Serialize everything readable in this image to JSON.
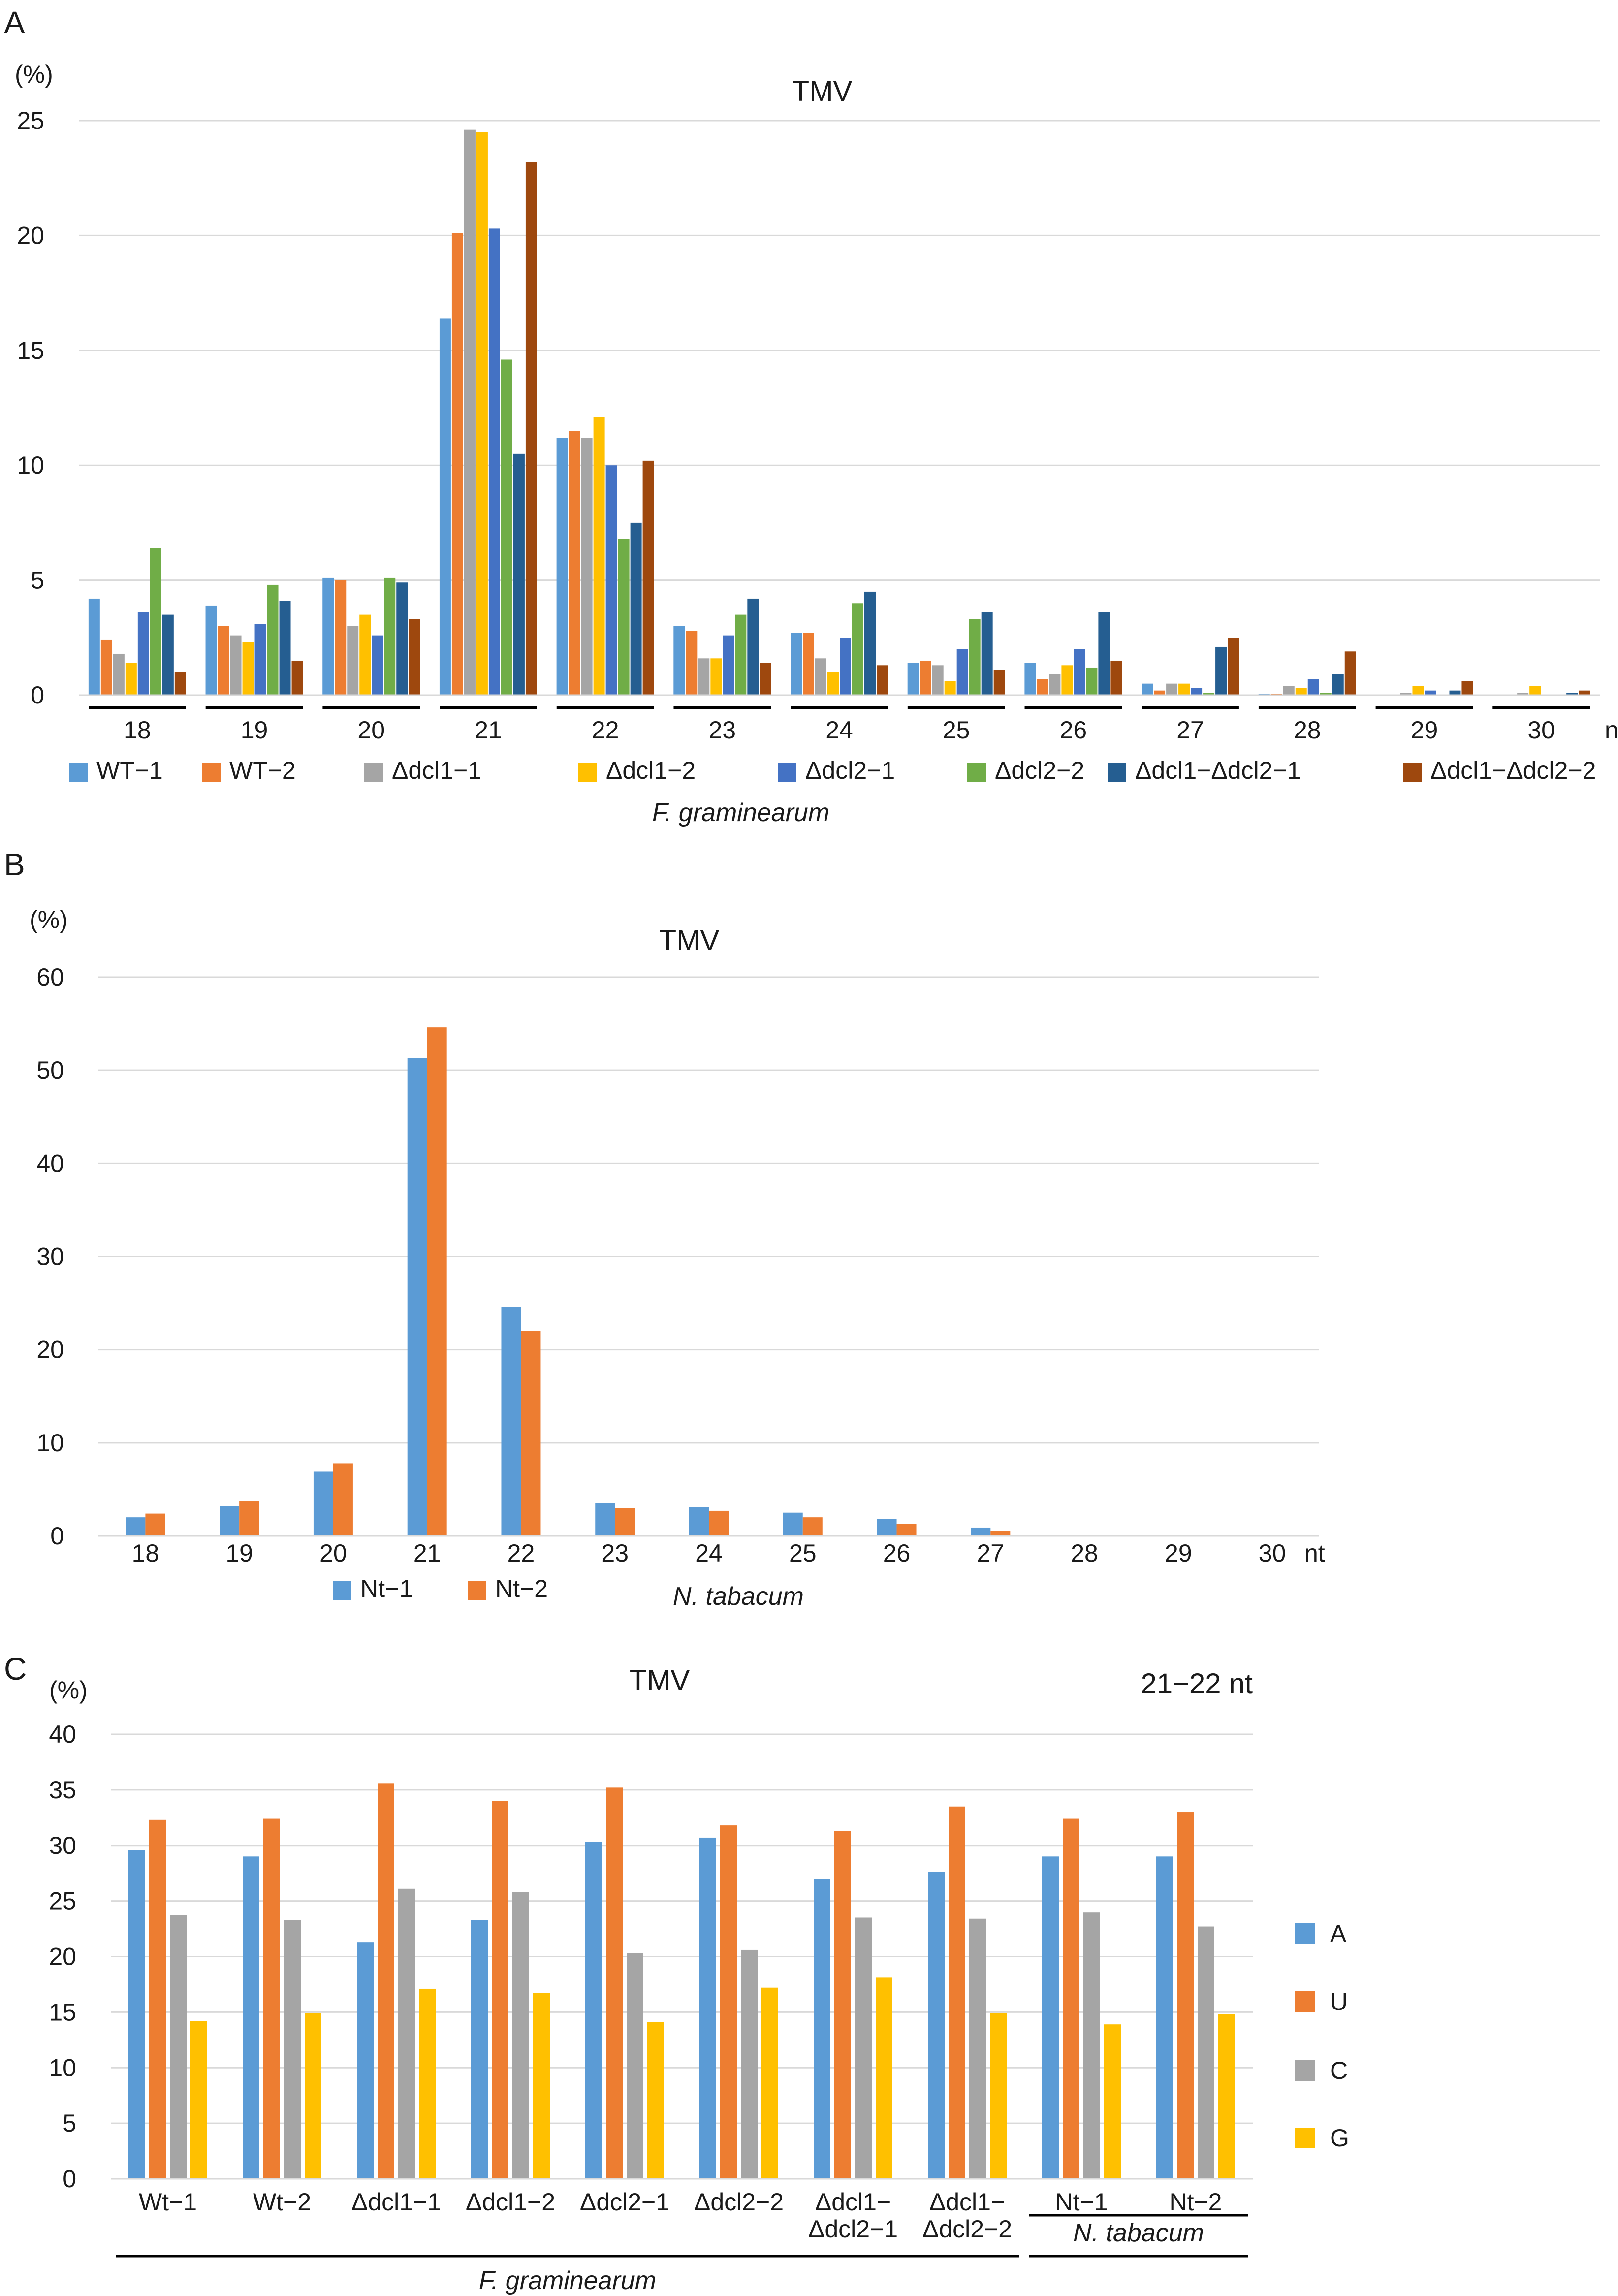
{
  "panels": [
    "A",
    "B",
    "C"
  ],
  "chart_data": [
    {
      "panel": "A",
      "type": "bar",
      "title": "TMV",
      "ylabel": "(%)",
      "xlabel": "nt",
      "organism": "F. graminearum",
      "ylim": [
        0,
        25
      ],
      "yticks": [
        "0",
        "5",
        "10",
        "15",
        "20",
        "25"
      ],
      "grid": true,
      "legend_position": "bottom",
      "categories": [
        "18",
        "19",
        "20",
        "21",
        "22",
        "23",
        "24",
        "25",
        "26",
        "27",
        "28",
        "29",
        "30"
      ],
      "series": [
        {
          "name": "WT−1",
          "color": "#5b9bd5",
          "values": [
            4.2,
            3.9,
            5.1,
            16.4,
            11.2,
            3.0,
            2.7,
            1.4,
            1.4,
            0.5,
            0.05,
            0.0,
            0.0
          ]
        },
        {
          "name": "WT−2",
          "color": "#ed7d31",
          "values": [
            2.4,
            3.0,
            5.0,
            20.1,
            11.5,
            2.8,
            2.7,
            1.5,
            0.7,
            0.2,
            0.05,
            0.0,
            0.0
          ]
        },
        {
          "name": "Δdcl1−1",
          "color": "#a5a5a5",
          "values": [
            1.8,
            2.6,
            3.0,
            24.6,
            11.2,
            1.6,
            1.6,
            1.3,
            0.9,
            0.5,
            0.4,
            0.1,
            0.1
          ]
        },
        {
          "name": "Δdcl1−2",
          "color": "#ffc000",
          "values": [
            1.4,
            2.3,
            3.5,
            24.5,
            12.1,
            1.6,
            1.0,
            0.6,
            1.3,
            0.5,
            0.3,
            0.4,
            0.4
          ]
        },
        {
          "name": "Δdcl2−1",
          "color": "#4472c4",
          "values": [
            3.6,
            3.1,
            2.6,
            20.3,
            10.0,
            2.6,
            2.5,
            2.0,
            2.0,
            0.3,
            0.7,
            0.2,
            0.0
          ]
        },
        {
          "name": "Δdcl2−2",
          "color": "#70ad47",
          "values": [
            6.4,
            4.8,
            5.1,
            14.6,
            6.8,
            3.5,
            4.0,
            3.3,
            1.2,
            0.1,
            0.1,
            0.0,
            0.0
          ]
        },
        {
          "name": "Δdcl1−Δdcl2−1",
          "color": "#255e91",
          "values": [
            3.5,
            4.1,
            4.9,
            10.5,
            7.5,
            4.2,
            4.5,
            3.6,
            3.6,
            2.1,
            0.9,
            0.2,
            0.1
          ]
        },
        {
          "name": "Δdcl1−Δdcl2−2",
          "color": "#9e480e",
          "values": [
            1.0,
            1.5,
            3.3,
            23.2,
            10.2,
            1.4,
            1.3,
            1.1,
            1.5,
            2.5,
            1.9,
            0.6,
            0.2
          ]
        }
      ]
    },
    {
      "panel": "B",
      "type": "bar",
      "title": "TMV",
      "ylabel": "(%)",
      "xlabel": "nt",
      "organism": "N. tabacum",
      "ylim": [
        0,
        60
      ],
      "yticks": [
        "0",
        "10",
        "20",
        "30",
        "40",
        "50",
        "60"
      ],
      "grid": true,
      "legend_position": "bottom",
      "categories": [
        "18",
        "19",
        "20",
        "21",
        "22",
        "23",
        "24",
        "25",
        "26",
        "27",
        "28",
        "29",
        "30"
      ],
      "series": [
        {
          "name": "Nt−1",
          "color": "#5b9bd5",
          "values": [
            2.0,
            3.2,
            6.9,
            51.3,
            24.6,
            3.5,
            3.1,
            2.5,
            1.8,
            0.9,
            0.0,
            0.0,
            0.0
          ]
        },
        {
          "name": "Nt−2",
          "color": "#ed7d31",
          "values": [
            2.4,
            3.7,
            7.8,
            54.6,
            22.0,
            3.0,
            2.7,
            2.0,
            1.3,
            0.5,
            0.0,
            0.0,
            0.0
          ]
        }
      ]
    },
    {
      "panel": "C",
      "type": "bar",
      "title": "TMV",
      "subtitle": "21−22 nt",
      "ylabel": "(%)",
      "ylim": [
        0,
        40
      ],
      "yticks": [
        "0",
        "5",
        "10",
        "15",
        "20",
        "25",
        "30",
        "35",
        "40"
      ],
      "grid": true,
      "legend_position": "right",
      "categories": [
        "Wt−1",
        "Wt−2",
        "Δdcl1−1",
        "Δdcl1−2",
        "Δdcl2−1",
        "Δdcl2−2",
        "Δdcl1−\nΔdcl2−1",
        "Δdcl1−\nΔdcl2−2",
        "Nt−1",
        "Nt−2"
      ],
      "groups": [
        {
          "label": "F. graminearum",
          "from": 0,
          "to": 7
        },
        {
          "label": "N. tabacum",
          "from": 8,
          "to": 9
        }
      ],
      "series": [
        {
          "name": "A",
          "color": "#5b9bd5",
          "values": [
            29.6,
            29.0,
            21.3,
            23.3,
            30.3,
            30.7,
            27.0,
            27.6,
            29.0,
            29.0
          ]
        },
        {
          "name": "U",
          "color": "#ed7d31",
          "values": [
            32.3,
            32.4,
            35.6,
            34.0,
            35.2,
            31.8,
            31.3,
            33.5,
            32.4,
            33.0
          ]
        },
        {
          "name": "C",
          "color": "#a5a5a5",
          "values": [
            23.7,
            23.3,
            26.1,
            25.8,
            20.3,
            20.6,
            23.5,
            23.4,
            24.0,
            22.7
          ]
        },
        {
          "name": "G",
          "color": "#ffc000",
          "values": [
            14.2,
            14.9,
            17.1,
            16.7,
            14.1,
            17.2,
            18.1,
            14.9,
            13.9,
            14.8
          ]
        }
      ]
    }
  ]
}
